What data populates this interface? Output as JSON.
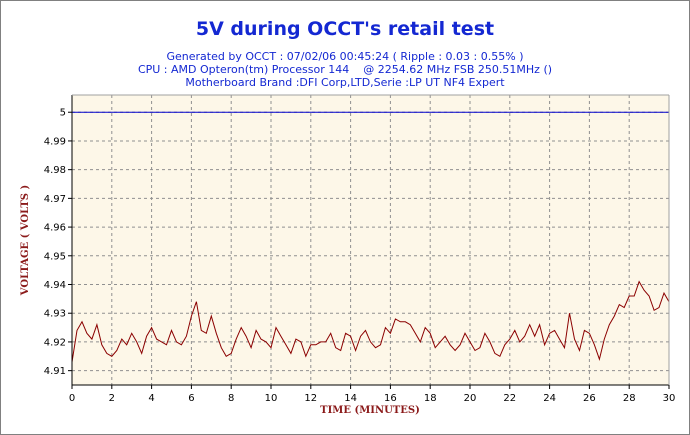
{
  "chart_data": {
    "type": "line",
    "title": "5V during OCCT's retail test",
    "subtitle_lines": [
      "Generated by OCCT : 07/02/06 00:45:24 ( Ripple : 0.03 : 0.55% )",
      "CPU : AMD Opteron(tm) Processor 144    @ 2254.62 MHz FSB 250.51MHz ()",
      "Motherboard Brand :DFI Corp,LTD,Serie :LP UT NF4 Expert"
    ],
    "xlabel": "TIME (MINUTES)",
    "ylabel": "VOLTAGE ( VOLTS )",
    "xlim": [
      0,
      30
    ],
    "ylim": [
      4.905,
      5.006
    ],
    "xticks": [
      0,
      2,
      4,
      6,
      8,
      10,
      12,
      14,
      16,
      18,
      20,
      22,
      24,
      26,
      28,
      30
    ],
    "yticks": [
      4.91,
      4.92,
      4.93,
      4.94,
      4.95,
      4.96,
      4.97,
      4.98,
      4.99,
      5
    ],
    "grid": true,
    "colors": {
      "series_5v_reference": "#0000cc",
      "series_voltage": "#8b0000",
      "plot_background": "#fdf7e8",
      "title": "#1428d2"
    },
    "series": [
      {
        "x": [
          0,
          30
        ],
        "values": [
          5.0,
          5.0
        ]
      },
      {
        "x": [
          0,
          0.25,
          0.5,
          0.75,
          1,
          1.25,
          1.5,
          1.75,
          2,
          2.25,
          2.5,
          2.75,
          3,
          3.25,
          3.5,
          3.75,
          4,
          4.25,
          4.5,
          4.75,
          5,
          5.25,
          5.5,
          5.75,
          6,
          6.25,
          6.5,
          6.75,
          7,
          7.25,
          7.5,
          7.75,
          8,
          8.25,
          8.5,
          8.75,
          9,
          9.25,
          9.5,
          9.75,
          10,
          10.25,
          10.5,
          10.75,
          11,
          11.25,
          11.5,
          11.75,
          12,
          12.25,
          12.5,
          12.75,
          13,
          13.25,
          13.5,
          13.75,
          14,
          14.25,
          14.5,
          14.75,
          15,
          15.25,
          15.5,
          15.75,
          16,
          16.25,
          16.5,
          16.75,
          17,
          17.25,
          17.5,
          17.75,
          18,
          18.25,
          18.5,
          18.75,
          19,
          19.25,
          19.5,
          19.75,
          20,
          20.25,
          20.5,
          20.75,
          21,
          21.25,
          21.5,
          21.75,
          22,
          22.25,
          22.5,
          22.75,
          23,
          23.25,
          23.5,
          23.75,
          24,
          24.25,
          24.5,
          24.75,
          25,
          25.25,
          25.5,
          25.75,
          26,
          26.25,
          26.5,
          26.75,
          27,
          27.25,
          27.5,
          27.75,
          28,
          28.25,
          28.5,
          28.75,
          29,
          29.25,
          29.5,
          29.75,
          30
        ],
        "values": [
          4.913,
          4.924,
          4.927,
          4.923,
          4.921,
          4.926,
          4.919,
          4.916,
          4.915,
          4.917,
          4.921,
          4.919,
          4.923,
          4.92,
          4.916,
          4.922,
          4.925,
          4.921,
          4.92,
          4.919,
          4.924,
          4.92,
          4.919,
          4.922,
          4.929,
          4.934,
          4.924,
          4.923,
          4.929,
          4.923,
          4.918,
          4.915,
          4.916,
          4.921,
          4.925,
          4.922,
          4.918,
          4.924,
          4.921,
          4.92,
          4.918,
          4.925,
          4.922,
          4.919,
          4.916,
          4.921,
          4.92,
          4.915,
          4.919,
          4.919,
          4.92,
          4.92,
          4.923,
          4.918,
          4.917,
          4.923,
          4.922,
          4.917,
          4.922,
          4.924,
          4.92,
          4.918,
          4.919,
          4.925,
          4.923,
          4.928,
          4.927,
          4.927,
          4.926,
          4.923,
          4.92,
          4.925,
          4.923,
          4.918,
          4.92,
          4.922,
          4.919,
          4.917,
          4.919,
          4.923,
          4.92,
          4.917,
          4.918,
          4.923,
          4.92,
          4.916,
          4.915,
          4.919,
          4.921,
          4.924,
          4.92,
          4.922,
          4.926,
          4.922,
          4.926,
          4.919,
          4.923,
          4.924,
          4.921,
          4.918,
          4.93,
          4.921,
          4.917,
          4.924,
          4.923,
          4.919,
          4.914,
          4.921,
          4.926,
          4.929,
          4.933,
          4.932,
          4.936,
          4.936,
          4.941,
          4.938,
          4.936,
          4.931,
          4.932,
          4.937,
          4.934
        ]
      }
    ]
  }
}
